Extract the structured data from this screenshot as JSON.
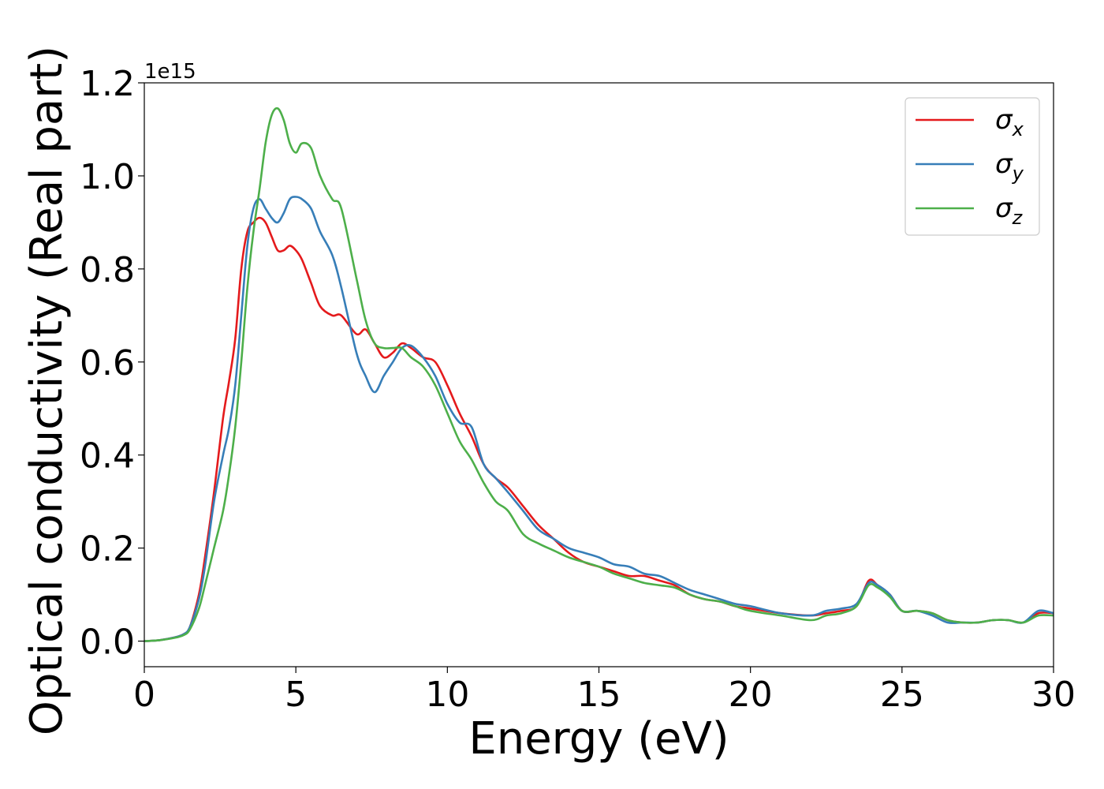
{
  "chart_data": {
    "type": "line",
    "xlabel": "Energy (eV)",
    "ylabel": "Optical conductivity (Real part)",
    "offset_label": "1e15",
    "y_scale_factor": 1000000000000000.0,
    "xlim": [
      0,
      30
    ],
    "ylim": [
      -0.055,
      1.2
    ],
    "xticks": [
      0,
      5,
      10,
      15,
      20,
      25,
      30
    ],
    "yticks": [
      0.0,
      0.2,
      0.4,
      0.6,
      0.8,
      1.0,
      1.2
    ],
    "xtick_labels": [
      "0",
      "5",
      "10",
      "15",
      "20",
      "25",
      "30"
    ],
    "ytick_labels": [
      "0.0",
      "0.2",
      "0.4",
      "0.6",
      "0.8",
      "1.0",
      "1.2"
    ],
    "grid": false,
    "legend_position": "top-right",
    "series": [
      {
        "name": "σx",
        "sub": "x",
        "color": "#e41a1c",
        "x": [
          0,
          0.5,
          1.0,
          1.3,
          1.5,
          1.8,
          2.0,
          2.3,
          2.6,
          2.8,
          3.0,
          3.2,
          3.4,
          3.6,
          3.8,
          4.0,
          4.2,
          4.4,
          4.6,
          4.8,
          5.0,
          5.2,
          5.5,
          5.8,
          6.2,
          6.5,
          7.0,
          7.3,
          7.6,
          7.9,
          8.2,
          8.5,
          8.8,
          9.2,
          9.6,
          10.0,
          10.4,
          10.8,
          11.2,
          11.6,
          12.0,
          12.5,
          13.0,
          13.5,
          14.0,
          14.5,
          15.0,
          15.5,
          16.0,
          16.5,
          17.0,
          17.5,
          18.0,
          18.5,
          19.0,
          19.5,
          20.0,
          21.0,
          22.0,
          22.5,
          23.0,
          23.5,
          23.9,
          24.2,
          24.6,
          25.0,
          25.5,
          26.0,
          26.5,
          27.0,
          27.5,
          28.0,
          28.5,
          29.0,
          29.5,
          30.0
        ],
        "y": [
          0.0,
          0.002,
          0.008,
          0.015,
          0.03,
          0.1,
          0.18,
          0.32,
          0.48,
          0.56,
          0.65,
          0.8,
          0.88,
          0.9,
          0.91,
          0.9,
          0.87,
          0.84,
          0.84,
          0.85,
          0.84,
          0.82,
          0.77,
          0.72,
          0.7,
          0.7,
          0.66,
          0.67,
          0.64,
          0.61,
          0.62,
          0.64,
          0.63,
          0.61,
          0.6,
          0.55,
          0.49,
          0.44,
          0.38,
          0.35,
          0.33,
          0.29,
          0.25,
          0.22,
          0.19,
          0.17,
          0.16,
          0.15,
          0.14,
          0.14,
          0.13,
          0.12,
          0.1,
          0.09,
          0.085,
          0.075,
          0.07,
          0.06,
          0.055,
          0.06,
          0.065,
          0.075,
          0.13,
          0.12,
          0.1,
          0.065,
          0.065,
          0.06,
          0.045,
          0.04,
          0.04,
          0.045,
          0.045,
          0.04,
          0.06,
          0.06
        ]
      },
      {
        "name": "σy",
        "sub": "y",
        "color": "#377eb8",
        "x": [
          0,
          0.5,
          1.0,
          1.3,
          1.5,
          1.8,
          2.0,
          2.3,
          2.6,
          2.8,
          3.0,
          3.2,
          3.4,
          3.6,
          3.8,
          4.0,
          4.2,
          4.4,
          4.6,
          4.8,
          5.0,
          5.2,
          5.5,
          5.8,
          6.2,
          6.5,
          7.0,
          7.3,
          7.6,
          7.9,
          8.2,
          8.5,
          8.8,
          9.2,
          9.6,
          10.0,
          10.4,
          10.8,
          11.2,
          11.6,
          12.0,
          12.5,
          13.0,
          13.5,
          14.0,
          14.5,
          15.0,
          15.5,
          16.0,
          16.5,
          17.0,
          17.5,
          18.0,
          18.5,
          19.0,
          19.5,
          20.0,
          21.0,
          22.0,
          22.5,
          23.0,
          23.5,
          23.9,
          24.2,
          24.6,
          25.0,
          25.5,
          26.0,
          26.5,
          27.0,
          27.5,
          28.0,
          28.5,
          29.0,
          29.5,
          30.0
        ],
        "y": [
          0.0,
          0.002,
          0.008,
          0.015,
          0.03,
          0.09,
          0.16,
          0.3,
          0.4,
          0.46,
          0.55,
          0.7,
          0.85,
          0.93,
          0.95,
          0.93,
          0.91,
          0.9,
          0.92,
          0.95,
          0.955,
          0.95,
          0.93,
          0.88,
          0.83,
          0.76,
          0.62,
          0.57,
          0.535,
          0.57,
          0.6,
          0.63,
          0.635,
          0.61,
          0.57,
          0.51,
          0.47,
          0.46,
          0.38,
          0.35,
          0.32,
          0.28,
          0.24,
          0.22,
          0.2,
          0.19,
          0.18,
          0.165,
          0.16,
          0.145,
          0.14,
          0.125,
          0.11,
          0.1,
          0.09,
          0.08,
          0.075,
          0.06,
          0.055,
          0.065,
          0.07,
          0.08,
          0.125,
          0.12,
          0.1,
          0.065,
          0.065,
          0.055,
          0.04,
          0.04,
          0.04,
          0.045,
          0.045,
          0.04,
          0.065,
          0.06
        ]
      },
      {
        "name": "σz",
        "sub": "z",
        "color": "#4daf4a",
        "x": [
          0,
          0.5,
          1.0,
          1.3,
          1.5,
          1.8,
          2.0,
          2.3,
          2.6,
          2.8,
          3.0,
          3.2,
          3.4,
          3.6,
          3.8,
          4.0,
          4.2,
          4.4,
          4.6,
          4.8,
          5.0,
          5.2,
          5.5,
          5.8,
          6.2,
          6.5,
          7.0,
          7.3,
          7.6,
          7.9,
          8.2,
          8.5,
          8.8,
          9.2,
          9.6,
          10.0,
          10.4,
          10.8,
          11.2,
          11.6,
          12.0,
          12.5,
          13.0,
          13.5,
          14.0,
          14.5,
          15.0,
          15.5,
          16.0,
          16.5,
          17.0,
          17.5,
          18.0,
          18.5,
          19.0,
          19.5,
          20.0,
          21.0,
          22.0,
          22.5,
          23.0,
          23.5,
          23.9,
          24.2,
          24.6,
          25.0,
          25.5,
          26.0,
          26.5,
          27.0,
          27.5,
          28.0,
          28.5,
          29.0,
          29.5,
          30.0
        ],
        "y": [
          0.0,
          0.002,
          0.007,
          0.013,
          0.025,
          0.07,
          0.12,
          0.2,
          0.28,
          0.36,
          0.46,
          0.6,
          0.76,
          0.88,
          0.97,
          1.07,
          1.13,
          1.145,
          1.12,
          1.07,
          1.05,
          1.07,
          1.06,
          1.0,
          0.95,
          0.93,
          0.78,
          0.69,
          0.64,
          0.63,
          0.63,
          0.63,
          0.61,
          0.59,
          0.55,
          0.49,
          0.43,
          0.39,
          0.34,
          0.3,
          0.28,
          0.23,
          0.21,
          0.195,
          0.18,
          0.17,
          0.16,
          0.145,
          0.135,
          0.125,
          0.12,
          0.115,
          0.1,
          0.09,
          0.085,
          0.075,
          0.065,
          0.055,
          0.045,
          0.055,
          0.06,
          0.075,
          0.12,
          0.115,
          0.095,
          0.065,
          0.065,
          0.06,
          0.045,
          0.04,
          0.04,
          0.045,
          0.045,
          0.04,
          0.055,
          0.055
        ]
      }
    ]
  }
}
